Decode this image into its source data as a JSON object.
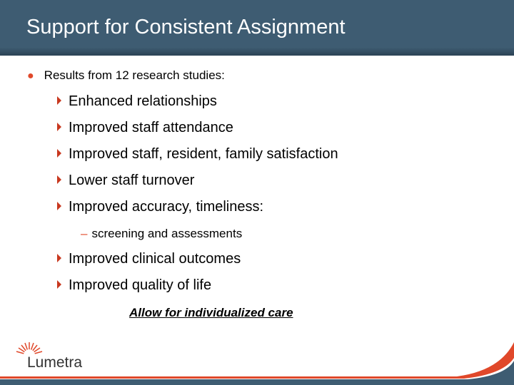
{
  "slide": {
    "title": "Support for Consistent Assignment",
    "lead": "Results from 12 research studies:",
    "items": [
      "Enhanced relationships",
      "Improved staff attendance",
      "Improved staff, resident, family satisfaction",
      "Lower staff turnover",
      "Improved accuracy, timeliness:"
    ],
    "sub_item": "screening and assessments",
    "items2": [
      "Improved clinical outcomes",
      "Improved quality of life"
    ],
    "emphasis": "Allow for individualized care"
  },
  "logo": {
    "text": "Lumetra"
  },
  "colors": {
    "header": "#3e5c72",
    "accent": "#e0482a"
  }
}
